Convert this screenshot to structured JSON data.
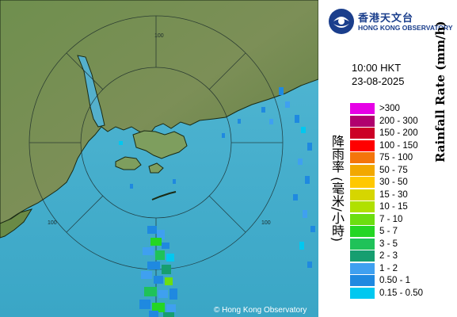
{
  "logo": {
    "name_cn": "香港天文台",
    "name_en": "HONG KONG OBSERVATORY"
  },
  "timestamp": {
    "time": "10:00 HKT",
    "date": "23-08-2025"
  },
  "legend": {
    "title_cn": "降雨率 (毫米/小時)",
    "title_en": "Rainfall Rate (mm/h)",
    "items": [
      {
        "label": ">300",
        "color": "#e600e6"
      },
      {
        "label": "200 - 300",
        "color": "#b0006e"
      },
      {
        "label": "150 - 200",
        "color": "#cc0026"
      },
      {
        "label": "100 - 150",
        "color": "#ff0000"
      },
      {
        "label": "75 - 100",
        "color": "#f4750b"
      },
      {
        "label": "50 - 75",
        "color": "#f2a800"
      },
      {
        "label": "30 - 50",
        "color": "#ffc800"
      },
      {
        "label": "15 - 30",
        "color": "#d6d600"
      },
      {
        "label": "10 - 15",
        "color": "#b0e000"
      },
      {
        "label": "7 - 10",
        "color": "#6cde10"
      },
      {
        "label": "5 - 7",
        "color": "#24d624"
      },
      {
        "label": "3 - 5",
        "color": "#1fc259"
      },
      {
        "label": "2 - 3",
        "color": "#169e70"
      },
      {
        "label": "1 - 2",
        "color": "#3fa0f0"
      },
      {
        "label": "0.50 - 1",
        "color": "#1f89e0"
      },
      {
        "label": "0.15 - 0.50",
        "color": "#00c8f0"
      }
    ]
  },
  "map": {
    "range_label": "100",
    "copyright": "© Hong Kong Observatory",
    "sea_color": "#3fa8c8",
    "land_color": "#5a8a3a"
  }
}
